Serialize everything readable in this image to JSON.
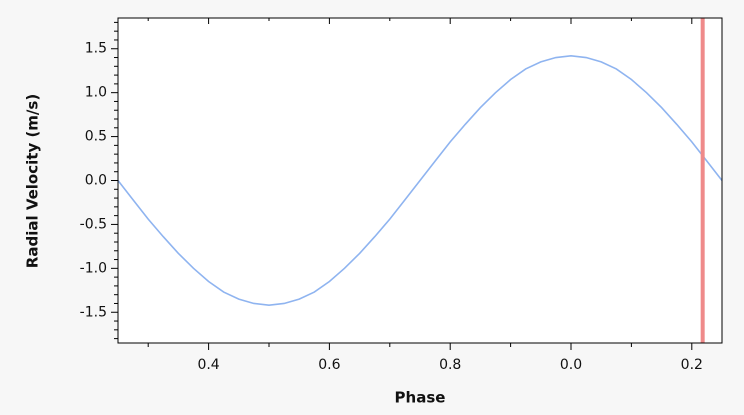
{
  "chart_data": {
    "type": "line",
    "xlabel": "Phase",
    "ylabel": "Radial Velocity (m/s)",
    "x": [
      0.25,
      0.275,
      0.3,
      0.325,
      0.35,
      0.375,
      0.4,
      0.425,
      0.45,
      0.475,
      0.5,
      0.525,
      0.55,
      0.575,
      0.6,
      0.625,
      0.65,
      0.675,
      0.7,
      0.725,
      0.75,
      0.775,
      0.8,
      0.825,
      0.85,
      0.875,
      0.9,
      0.925,
      0.95,
      0.975,
      1.0,
      1.025,
      1.05,
      1.075,
      1.1,
      1.125,
      1.15,
      1.175,
      1.2,
      1.225,
      1.25
    ],
    "series": [
      {
        "color": "#8fb4f0",
        "values": [
          0,
          -0.22,
          -0.44,
          -0.64,
          -0.83,
          -1.0,
          -1.15,
          -1.27,
          -1.35,
          -1.4,
          -1.42,
          -1.4,
          -1.35,
          -1.27,
          -1.15,
          -1.0,
          -0.83,
          -0.64,
          -0.44,
          -0.22,
          0,
          0.22,
          0.44,
          0.64,
          0.83,
          1.0,
          1.15,
          1.27,
          1.35,
          1.4,
          1.42,
          1.4,
          1.35,
          1.27,
          1.15,
          1.0,
          0.83,
          0.64,
          0.44,
          0.22,
          0
        ]
      }
    ],
    "marker_x": 1.218,
    "marker_color": "#ef8a8a",
    "xlim": [
      0.25,
      1.25
    ],
    "xticks": [
      0.4,
      0.6,
      0.8,
      {
        "value": 1.0,
        "label": "0.0"
      },
      {
        "value": 1.2,
        "label": "0.2"
      }
    ],
    "xminorticks": [
      0.3,
      0.5,
      0.7,
      0.9,
      1.1
    ],
    "ylim": [
      -1.85,
      1.85
    ],
    "yticks": [
      1.5,
      {
        "value": 1,
        "label": "1.0"
      },
      0.5,
      {
        "value": 0,
        "label": "0.0"
      },
      -0.5,
      {
        "value": -1,
        "label": "-1.0"
      },
      -1.5
    ],
    "yminorticks": [
      -1.8,
      -1.7,
      -1.6,
      -1.4,
      -1.3,
      -1.2,
      -1.1,
      -0.9,
      -0.8,
      -0.7,
      -0.6,
      -0.4,
      -0.3,
      -0.2,
      -0.1,
      0.1,
      0.2,
      0.3,
      0.4,
      0.6,
      0.7,
      0.8,
      0.9,
      1.1,
      1.2,
      1.3,
      1.4,
      1.6,
      1.7,
      1.8
    ]
  }
}
